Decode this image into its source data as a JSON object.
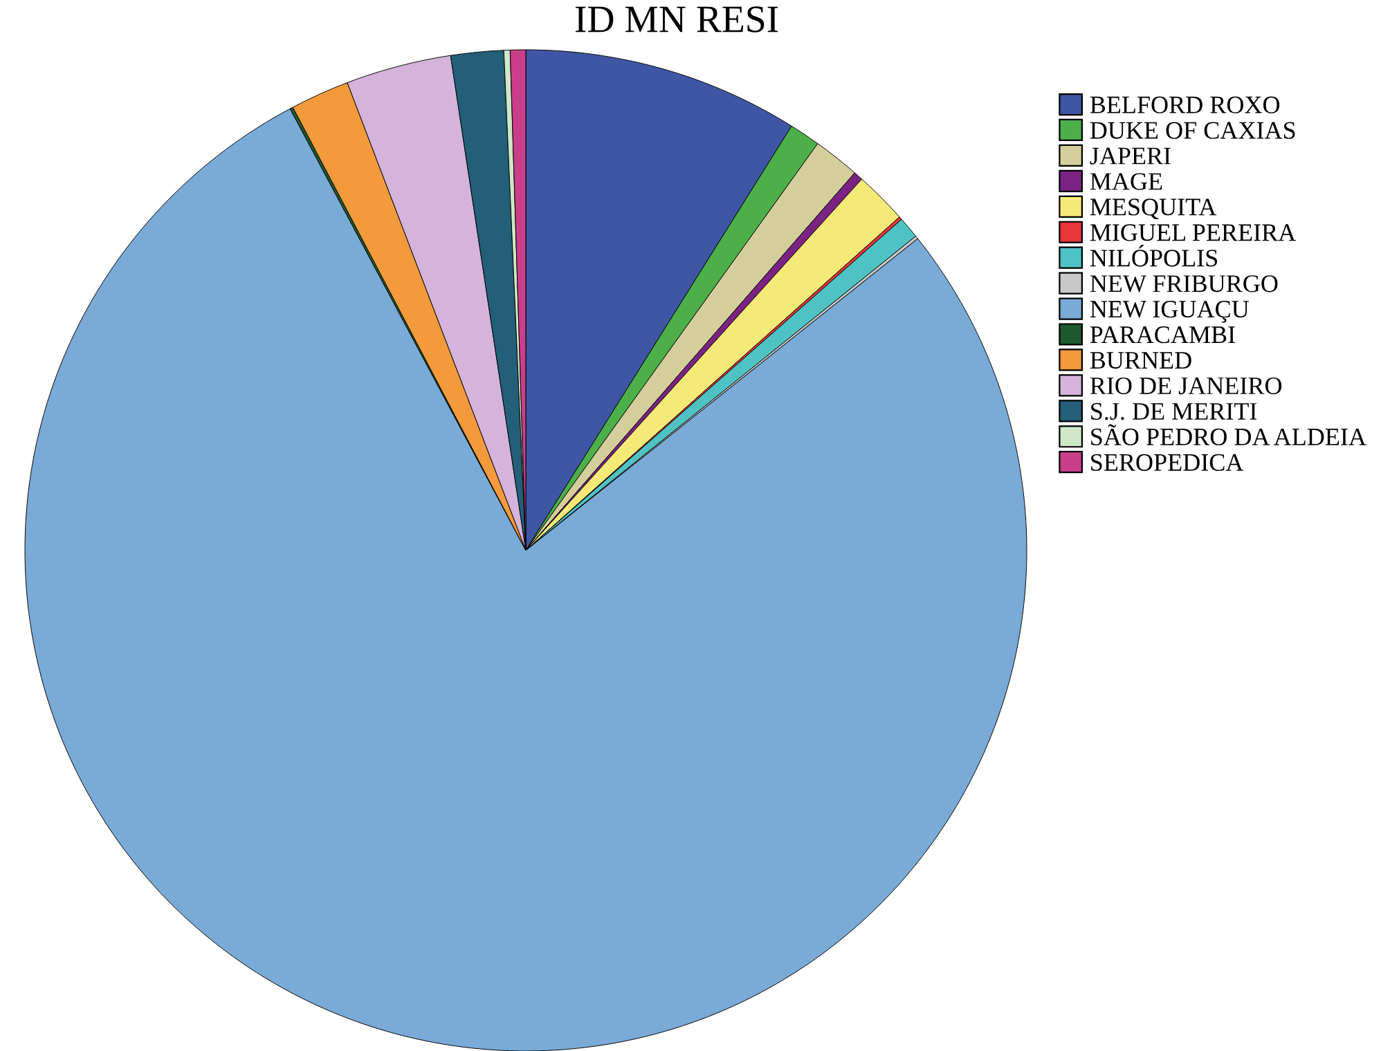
{
  "chart_data": {
    "type": "pie",
    "title": "ID MN RESI",
    "categories": [
      "BELFORD ROXO",
      "DUKE OF CAXIAS",
      "JAPERI",
      "MAGE",
      "MESQUITA",
      "MIGUEL PEREIRA",
      "NILÓPOLIS",
      "NEW FRIBURGO",
      "NEW IGUAÇU",
      "PARACAMBI",
      "BURNED",
      "RIO DE JANEIRO",
      "S.J. DE MERITI",
      "SÃO PEDRO DA ALDEIA",
      "SEROPEDICA"
    ],
    "values": [
      8.9,
      1.0,
      1.5,
      0.3,
      1.7,
      0.1,
      0.7,
      0.1,
      77.9,
      0.1,
      1.9,
      3.4,
      1.7,
      0.2,
      0.5
    ],
    "colors": [
      "#3f56a5",
      "#4caf4a",
      "#d4cf9a",
      "#7b2383",
      "#f5ea78",
      "#e8373a",
      "#4fc3c4",
      "#c8c8c8",
      "#7aaad6",
      "#1f5a2e",
      "#f39a3c",
      "#d4b4da",
      "#235f78",
      "#cfe8c8",
      "#c93f8a"
    ],
    "legend": "top right"
  }
}
